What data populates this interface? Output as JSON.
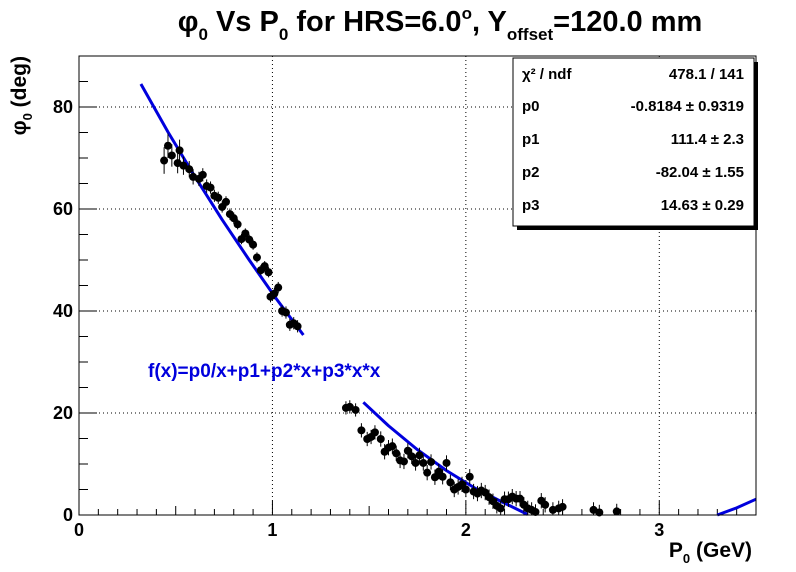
{
  "chart_data": {
    "type": "scatter",
    "title": {
      "t1": "φ",
      "t1sub": "0",
      "t2": " Vs P",
      "t2sub": "0",
      "t3": " for HRS=6.0",
      "t3sup": "o",
      "t4": ", Y",
      "t4sub": "offset",
      "t5": "=120.0 mm"
    },
    "xlabel": {
      "main": "P",
      "sub": "0",
      "rest": " (GeV)"
    },
    "ylabel": {
      "main": "φ",
      "sub": "0",
      "rest": " (deg)"
    },
    "xlim": [
      0,
      3.5
    ],
    "ylim": [
      0,
      90
    ],
    "x_ticks": [
      "0",
      "1",
      "2",
      "3"
    ],
    "y_ticks": [
      "0",
      "20",
      "40",
      "60",
      "80"
    ],
    "grid": true,
    "stats_box": [
      {
        "label": "χ² / ndf",
        "value": "478.1 / 141"
      },
      {
        "label": "p0",
        "value": "-0.8184 ± 0.9319"
      },
      {
        "label": "p1",
        "value": "111.4 ± 2.3"
      },
      {
        "label": "p2",
        "value": "-82.04 ± 1.55"
      },
      {
        "label": "p3",
        "value": "14.63 ± 0.29"
      }
    ],
    "stats_placement": "top-right",
    "fit_label": "f(x)=p0/x+p1+p2*x+p3*x*x",
    "fit_color": "#0000dd",
    "marker_color": "#000000",
    "fit_segments": [
      {
        "x": [
          0.32,
          0.46,
          0.6,
          0.74,
          0.88,
          1.02,
          1.16
        ],
        "y": [
          84.5,
          75.1,
          66.3,
          57.9,
          50.0,
          42.4,
          35.3
        ]
      },
      {
        "x": [
          1.47,
          1.6,
          1.75,
          1.9,
          2.05,
          2.18,
          2.32
        ],
        "y": [
          22.1,
          17.5,
          12.8,
          8.7,
          5.2,
          2.7,
          0.1
        ]
      },
      {
        "x": [
          3.3,
          3.4,
          3.5
        ],
        "y": [
          0.0,
          1.4,
          3.1
        ]
      }
    ],
    "points": [
      {
        "x": 0.44,
        "y": 69.5,
        "e": 2.6
      },
      {
        "x": 0.46,
        "y": 72.4,
        "e": 2.4
      },
      {
        "x": 0.48,
        "y": 70.5,
        "e": 2.2
      },
      {
        "x": 0.51,
        "y": 69.0,
        "e": 2.0
      },
      {
        "x": 0.52,
        "y": 71.5,
        "e": 2.1
      },
      {
        "x": 0.54,
        "y": 68.5,
        "e": 1.8
      },
      {
        "x": 0.57,
        "y": 67.8,
        "e": 1.6
      },
      {
        "x": 0.59,
        "y": 66.3,
        "e": 1.5
      },
      {
        "x": 0.62,
        "y": 65.9,
        "e": 1.4
      },
      {
        "x": 0.64,
        "y": 66.7,
        "e": 1.3
      },
      {
        "x": 0.66,
        "y": 64.5,
        "e": 1.3
      },
      {
        "x": 0.68,
        "y": 64.2,
        "e": 1.2
      },
      {
        "x": 0.7,
        "y": 62.6,
        "e": 1.2
      },
      {
        "x": 0.72,
        "y": 62.2,
        "e": 1.2
      },
      {
        "x": 0.74,
        "y": 60.4,
        "e": 1.1
      },
      {
        "x": 0.76,
        "y": 61.4,
        "e": 1.1
      },
      {
        "x": 0.78,
        "y": 59.0,
        "e": 1.1
      },
      {
        "x": 0.8,
        "y": 58.2,
        "e": 1.1
      },
      {
        "x": 0.82,
        "y": 57.0,
        "e": 1.0
      },
      {
        "x": 0.84,
        "y": 54.1,
        "e": 1.0
      },
      {
        "x": 0.86,
        "y": 55.2,
        "e": 1.0
      },
      {
        "x": 0.88,
        "y": 54.0,
        "e": 1.0
      },
      {
        "x": 0.9,
        "y": 53.0,
        "e": 1.0
      },
      {
        "x": 0.92,
        "y": 50.5,
        "e": 1.0
      },
      {
        "x": 0.94,
        "y": 48.0,
        "e": 1.0
      },
      {
        "x": 0.96,
        "y": 48.8,
        "e": 1.0
      },
      {
        "x": 0.98,
        "y": 47.6,
        "e": 1.0
      },
      {
        "x": 0.99,
        "y": 42.8,
        "e": 1.1
      },
      {
        "x": 1.01,
        "y": 43.4,
        "e": 1.1
      },
      {
        "x": 1.03,
        "y": 44.6,
        "e": 1.1
      },
      {
        "x": 1.05,
        "y": 40.0,
        "e": 1.1
      },
      {
        "x": 1.07,
        "y": 39.7,
        "e": 1.2
      },
      {
        "x": 1.09,
        "y": 37.3,
        "e": 1.2
      },
      {
        "x": 1.11,
        "y": 37.6,
        "e": 1.2
      },
      {
        "x": 1.13,
        "y": 37.0,
        "e": 1.2
      },
      {
        "x": 1.38,
        "y": 21.0,
        "e": 1.3
      },
      {
        "x": 1.4,
        "y": 21.2,
        "e": 1.3
      },
      {
        "x": 1.43,
        "y": 20.6,
        "e": 1.3
      },
      {
        "x": 1.46,
        "y": 16.6,
        "e": 1.4
      },
      {
        "x": 1.49,
        "y": 14.9,
        "e": 1.4
      },
      {
        "x": 1.51,
        "y": 15.3,
        "e": 1.4
      },
      {
        "x": 1.53,
        "y": 16.2,
        "e": 1.4
      },
      {
        "x": 1.56,
        "y": 14.9,
        "e": 1.5
      },
      {
        "x": 1.58,
        "y": 12.4,
        "e": 1.5
      },
      {
        "x": 1.6,
        "y": 13.2,
        "e": 1.5
      },
      {
        "x": 1.62,
        "y": 13.5,
        "e": 1.5
      },
      {
        "x": 1.64,
        "y": 12.1,
        "e": 1.5
      },
      {
        "x": 1.66,
        "y": 10.7,
        "e": 1.5
      },
      {
        "x": 1.68,
        "y": 10.5,
        "e": 1.5
      },
      {
        "x": 1.7,
        "y": 12.6,
        "e": 1.5
      },
      {
        "x": 1.72,
        "y": 11.5,
        "e": 1.5
      },
      {
        "x": 1.74,
        "y": 10.2,
        "e": 1.5
      },
      {
        "x": 1.76,
        "y": 11.7,
        "e": 1.5
      },
      {
        "x": 1.78,
        "y": 10.2,
        "e": 1.5
      },
      {
        "x": 1.8,
        "y": 8.3,
        "e": 1.5
      },
      {
        "x": 1.82,
        "y": 10.4,
        "e": 1.5
      },
      {
        "x": 1.84,
        "y": 7.4,
        "e": 1.5
      },
      {
        "x": 1.86,
        "y": 8.5,
        "e": 1.5
      },
      {
        "x": 1.88,
        "y": 7.5,
        "e": 1.5
      },
      {
        "x": 1.9,
        "y": 10.2,
        "e": 1.5
      },
      {
        "x": 1.92,
        "y": 6.4,
        "e": 1.5
      },
      {
        "x": 1.94,
        "y": 5.0,
        "e": 1.5
      },
      {
        "x": 1.96,
        "y": 5.5,
        "e": 1.5
      },
      {
        "x": 1.98,
        "y": 6.0,
        "e": 1.5
      },
      {
        "x": 2.0,
        "y": 5.0,
        "e": 1.5
      },
      {
        "x": 2.02,
        "y": 7.5,
        "e": 1.5
      },
      {
        "x": 2.04,
        "y": 4.6,
        "e": 1.5
      },
      {
        "x": 2.06,
        "y": 4.2,
        "e": 1.5
      },
      {
        "x": 2.08,
        "y": 4.8,
        "e": 1.5
      },
      {
        "x": 2.1,
        "y": 4.4,
        "e": 1.5
      },
      {
        "x": 2.12,
        "y": 3.5,
        "e": 1.5
      },
      {
        "x": 2.14,
        "y": 2.7,
        "e": 1.5
      },
      {
        "x": 2.16,
        "y": 1.8,
        "e": 1.5
      },
      {
        "x": 2.18,
        "y": 1.3,
        "e": 1.5
      },
      {
        "x": 2.2,
        "y": 3.1,
        "e": 1.5
      },
      {
        "x": 2.22,
        "y": 3.1,
        "e": 1.5
      },
      {
        "x": 2.24,
        "y": 3.6,
        "e": 1.5
      },
      {
        "x": 2.26,
        "y": 3.2,
        "e": 1.5
      },
      {
        "x": 2.28,
        "y": 3.2,
        "e": 1.5
      },
      {
        "x": 2.3,
        "y": 2.0,
        "e": 1.5
      },
      {
        "x": 2.32,
        "y": 1.3,
        "e": 1.5
      },
      {
        "x": 2.34,
        "y": 1.0,
        "e": 1.5
      },
      {
        "x": 2.36,
        "y": 0.6,
        "e": 1.5
      },
      {
        "x": 2.39,
        "y": 2.8,
        "e": 1.5
      },
      {
        "x": 2.41,
        "y": 2.0,
        "e": 1.5
      },
      {
        "x": 2.45,
        "y": 1.0,
        "e": 1.5
      },
      {
        "x": 2.48,
        "y": 1.3,
        "e": 1.5
      },
      {
        "x": 2.5,
        "y": 1.6,
        "e": 1.5
      },
      {
        "x": 2.66,
        "y": 1.0,
        "e": 1.5
      },
      {
        "x": 2.69,
        "y": 0.5,
        "e": 1.5
      },
      {
        "x": 2.78,
        "y": 0.7,
        "e": 1.5
      }
    ]
  }
}
